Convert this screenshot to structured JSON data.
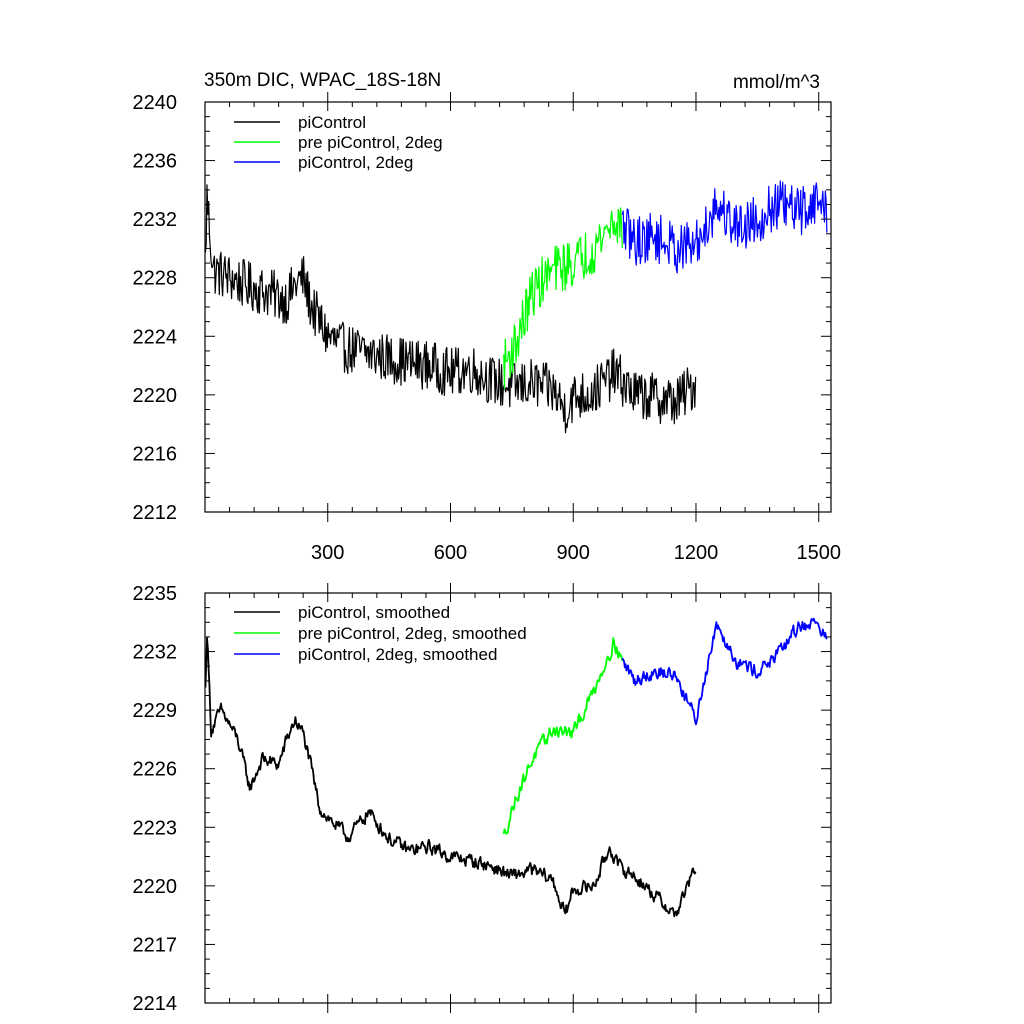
{
  "chart_data": [
    {
      "type": "line",
      "title": "350m DIC, WPAC_18S-18N",
      "units": "mmol/m^3",
      "xlim": [
        0,
        1530
      ],
      "ylim": [
        2212,
        2240
      ],
      "xticks": [
        300,
        600,
        900,
        1200,
        1500
      ],
      "xtick_labels": [
        "300",
        "600",
        "900",
        "1200",
        "1500"
      ],
      "yticks": [
        2212,
        2216,
        2220,
        2224,
        2228,
        2232,
        2236,
        2240
      ],
      "ytick_labels": [
        "2212",
        "2216",
        "2220",
        "2224",
        "2228",
        "2232",
        "2236",
        "2240"
      ],
      "legend": "top-left",
      "noise": 1.7,
      "series": [
        {
          "name": "piControl",
          "color": "#000000",
          "x_start": 1,
          "x_end": 1200,
          "x": [
            1,
            5,
            20,
            60,
            100,
            150,
            200,
            220,
            240,
            260,
            280,
            300,
            340,
            400,
            450,
            500,
            550,
            600,
            650,
            700,
            750,
            800,
            850,
            880,
            900,
            950,
            1000,
            1050,
            1100,
            1150,
            1200
          ],
          "y": [
            2229,
            2233.5,
            2228.5,
            2228,
            2227.5,
            2227,
            2226.5,
            2227.5,
            2228,
            2226,
            2225,
            2224,
            2223.2,
            2222.8,
            2222.5,
            2222.2,
            2222,
            2221.5,
            2221.8,
            2221,
            2220.5,
            2220.8,
            2220.3,
            2219,
            2219.8,
            2220.2,
            2221.5,
            2220,
            2219.8,
            2219.5,
            2220.8
          ]
        },
        {
          "name": "pre piControl, 2deg",
          "color": "#00ff00",
          "x_start": 730,
          "x_end": 1020,
          "x": [
            730,
            760,
            800,
            850,
            900,
            950,
            1000,
            1020
          ],
          "y": [
            2222,
            2223.5,
            2227,
            2228.5,
            2229,
            2230,
            2232,
            2231.5
          ]
        },
        {
          "name": "piControl, 2deg",
          "color": "#0000ff",
          "x_start": 1020,
          "x_end": 1520,
          "x": [
            1020,
            1050,
            1100,
            1150,
            1200,
            1250,
            1300,
            1350,
            1400,
            1450,
            1500,
            1520
          ],
          "y": [
            2231.5,
            2230.5,
            2230.8,
            2230,
            2230.2,
            2233,
            2231.5,
            2232,
            2233,
            2232.5,
            2233.3,
            2232.5
          ]
        }
      ]
    },
    {
      "type": "line",
      "title": "",
      "units": "",
      "xlim": [
        0,
        1530
      ],
      "ylim": [
        2214,
        2235
      ],
      "xticks": [
        300,
        600,
        900,
        1200,
        1500
      ],
      "xtick_labels": [],
      "yticks": [
        2214,
        2217,
        2220,
        2223,
        2226,
        2229,
        2232,
        2235
      ],
      "ytick_labels": [
        "2214",
        "2217",
        "2220",
        "2223",
        "2226",
        "2229",
        "2232",
        "2235"
      ],
      "legend": "top-left",
      "noise": 0.55,
      "series": [
        {
          "name": "piControl, smoothed",
          "color": "#000000",
          "x_start": 1,
          "x_end": 1200,
          "x": [
            1,
            5,
            15,
            40,
            80,
            110,
            140,
            180,
            200,
            220,
            240,
            260,
            280,
            300,
            350,
            400,
            450,
            500,
            550,
            600,
            650,
            700,
            750,
            800,
            850,
            880,
            900,
            950,
            990,
            1010,
            1050,
            1100,
            1150,
            1200
          ],
          "y": [
            2230,
            2233,
            2228,
            2229,
            2227.5,
            2225,
            2226.5,
            2226.2,
            2227.5,
            2228.5,
            2227.8,
            2226,
            2224,
            2223.5,
            2222.5,
            2223.8,
            2222.4,
            2221.8,
            2222,
            2221.5,
            2221.3,
            2221,
            2220.5,
            2220.8,
            2220.3,
            2218.5,
            2219.8,
            2220,
            2222,
            2221,
            2220.5,
            2219.5,
            2218.5,
            2221
          ]
        },
        {
          "name": "pre piControl, 2deg, smoothed",
          "color": "#00ff00",
          "x_start": 730,
          "x_end": 1020,
          "x": [
            730,
            760,
            800,
            850,
            900,
            950,
            1000,
            1020
          ],
          "y": [
            2222.5,
            2224.5,
            2226.5,
            2228,
            2227.8,
            2230,
            2232.5,
            2231.5
          ]
        },
        {
          "name": "piControl, 2deg, smoothed",
          "color": "#0000ff",
          "x_start": 1020,
          "x_end": 1520,
          "x": [
            1020,
            1050,
            1100,
            1150,
            1200,
            1250,
            1300,
            1350,
            1400,
            1450,
            1500,
            1520
          ],
          "y": [
            2231.5,
            2230.5,
            2231,
            2230.8,
            2228.5,
            2233.5,
            2231.5,
            2231,
            2231.8,
            2233.3,
            2233.5,
            2232.5
          ]
        }
      ]
    }
  ]
}
